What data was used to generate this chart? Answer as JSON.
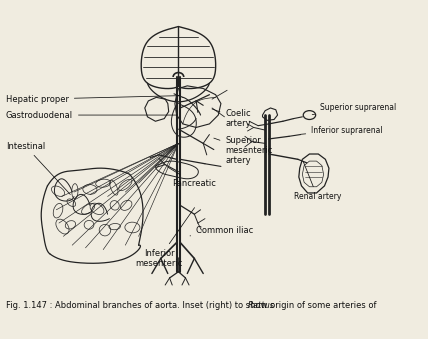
{
  "title": "Fig. 1.147 : Abdominal branches of aorta. Inset (right) to show origin of some arteries of ",
  "title_italic": "Rattus",
  "bg_color": "#f0ece0",
  "labels": {
    "hepatic_proper": "Hepatic proper",
    "gastroduodenal": "Gastroduodenal",
    "intestinal": "Intestinal",
    "coelic_artery": "Coelic\nartery",
    "superior_mesenteric": "Superior\nmesenteric\nartery",
    "pancreatic": "Pancreatic",
    "common_iliac": "Common iliac",
    "inferior_mesenteric": "Inferior\nmesenteric",
    "superior_suprarenal": "Superior suprarenal",
    "inferior_suprarenal": "Inferior suprarenal",
    "renal_artery": "Renal artery"
  },
  "line_color": "#222222",
  "text_color": "#111111",
  "font_size": 6.0,
  "caption_fontsize": 6.5
}
